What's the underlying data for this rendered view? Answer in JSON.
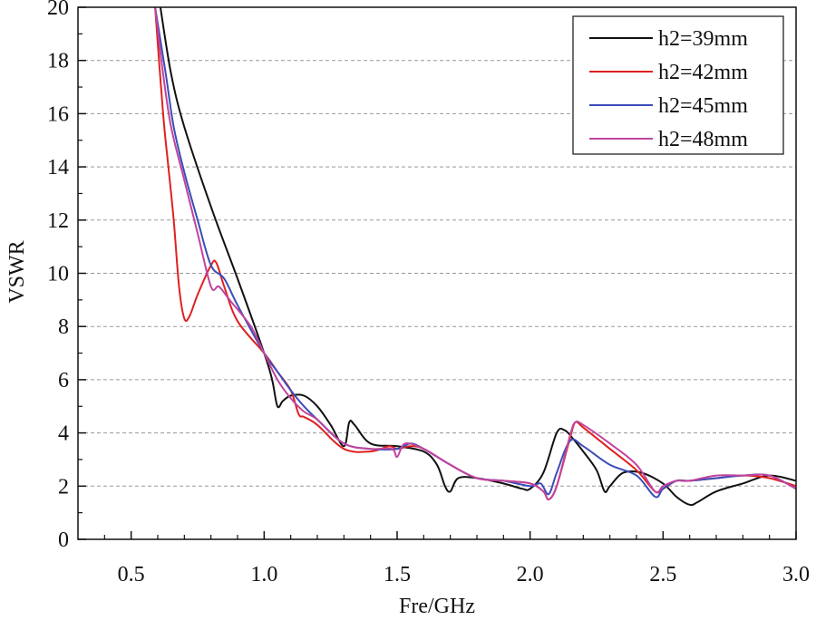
{
  "chart_data": {
    "type": "line",
    "title": "",
    "xlabel": "Fre/GHz",
    "ylabel": "VSWR",
    "xlim": [
      0.3,
      3.0
    ],
    "ylim": [
      0,
      20
    ],
    "x_ticks": [
      0.5,
      1.0,
      1.5,
      2.0,
      2.5,
      3.0
    ],
    "x_tick_labels": [
      "0.5",
      "1.0",
      "1.5",
      "2.0",
      "2.5",
      "3.0"
    ],
    "y_ticks": [
      0,
      2,
      4,
      6,
      8,
      10,
      12,
      14,
      16,
      18,
      20
    ],
    "y_tick_labels": [
      "0",
      "2",
      "4",
      "6",
      "8",
      "10",
      "12",
      "14",
      "16",
      "18",
      "20"
    ],
    "grid": "horizontal dashed",
    "legend_position": "top-right",
    "series": [
      {
        "name": "h2=39mm",
        "color": "#111111",
        "points": [
          [
            0.61,
            20.0
          ],
          [
            0.65,
            17.5
          ],
          [
            0.7,
            15.5
          ],
          [
            0.8,
            12.5
          ],
          [
            0.9,
            9.8
          ],
          [
            1.0,
            7.0
          ],
          [
            1.03,
            6.0
          ],
          [
            1.05,
            5.0
          ],
          [
            1.07,
            5.2
          ],
          [
            1.1,
            5.4
          ],
          [
            1.15,
            5.4
          ],
          [
            1.2,
            5.0
          ],
          [
            1.25,
            4.3
          ],
          [
            1.3,
            3.5
          ],
          [
            1.32,
            4.4
          ],
          [
            1.34,
            4.3
          ],
          [
            1.4,
            3.6
          ],
          [
            1.5,
            3.5
          ],
          [
            1.6,
            3.3
          ],
          [
            1.65,
            2.8
          ],
          [
            1.68,
            2.0
          ],
          [
            1.7,
            1.8
          ],
          [
            1.73,
            2.3
          ],
          [
            1.8,
            2.3
          ],
          [
            1.9,
            2.1
          ],
          [
            1.97,
            1.9
          ],
          [
            2.0,
            1.9
          ],
          [
            2.05,
            2.5
          ],
          [
            2.1,
            4.0
          ],
          [
            2.13,
            4.1
          ],
          [
            2.16,
            3.8
          ],
          [
            2.2,
            3.3
          ],
          [
            2.25,
            2.6
          ],
          [
            2.28,
            1.8
          ],
          [
            2.3,
            2.0
          ],
          [
            2.35,
            2.5
          ],
          [
            2.42,
            2.5
          ],
          [
            2.5,
            2.1
          ],
          [
            2.55,
            1.6
          ],
          [
            2.6,
            1.3
          ],
          [
            2.63,
            1.4
          ],
          [
            2.7,
            1.8
          ],
          [
            2.8,
            2.1
          ],
          [
            2.9,
            2.4
          ],
          [
            3.0,
            2.2
          ]
        ]
      },
      {
        "name": "h2=42mm",
        "color": "#e02020",
        "points": [
          [
            0.59,
            20.0
          ],
          [
            0.62,
            16.0
          ],
          [
            0.64,
            14.0
          ],
          [
            0.66,
            12.0
          ],
          [
            0.68,
            9.5
          ],
          [
            0.7,
            8.3
          ],
          [
            0.72,
            8.4
          ],
          [
            0.75,
            9.2
          ],
          [
            0.8,
            10.3
          ],
          [
            0.82,
            10.4
          ],
          [
            0.85,
            9.5
          ],
          [
            0.9,
            8.2
          ],
          [
            1.0,
            7.0
          ],
          [
            1.05,
            6.3
          ],
          [
            1.1,
            5.6
          ],
          [
            1.13,
            4.7
          ],
          [
            1.15,
            4.6
          ],
          [
            1.2,
            4.3
          ],
          [
            1.3,
            3.4
          ],
          [
            1.4,
            3.3
          ],
          [
            1.47,
            3.5
          ],
          [
            1.5,
            3.4
          ],
          [
            1.55,
            3.5
          ],
          [
            1.6,
            3.4
          ],
          [
            1.7,
            2.8
          ],
          [
            1.8,
            2.3
          ],
          [
            1.9,
            2.2
          ],
          [
            2.0,
            2.1
          ],
          [
            2.05,
            1.8
          ],
          [
            2.07,
            1.5
          ],
          [
            2.1,
            2.0
          ],
          [
            2.15,
            3.8
          ],
          [
            2.17,
            4.4
          ],
          [
            2.2,
            4.2
          ],
          [
            2.3,
            3.4
          ],
          [
            2.4,
            2.6
          ],
          [
            2.47,
            1.8
          ],
          [
            2.5,
            1.9
          ],
          [
            2.55,
            2.2
          ],
          [
            2.6,
            2.2
          ],
          [
            2.7,
            2.3
          ],
          [
            2.8,
            2.4
          ],
          [
            2.9,
            2.3
          ],
          [
            3.0,
            2.0
          ]
        ]
      },
      {
        "name": "h2=45mm",
        "color": "#3b4db8",
        "points": [
          [
            0.59,
            20.0
          ],
          [
            0.63,
            17.5
          ],
          [
            0.66,
            15.5
          ],
          [
            0.7,
            13.8
          ],
          [
            0.75,
            12.0
          ],
          [
            0.8,
            10.3
          ],
          [
            0.85,
            9.8
          ],
          [
            0.9,
            8.8
          ],
          [
            1.0,
            7.0
          ],
          [
            1.05,
            6.3
          ],
          [
            1.1,
            5.6
          ],
          [
            1.15,
            5.0
          ],
          [
            1.2,
            4.5
          ],
          [
            1.3,
            3.6
          ],
          [
            1.4,
            3.4
          ],
          [
            1.5,
            3.4
          ],
          [
            1.55,
            3.6
          ],
          [
            1.6,
            3.4
          ],
          [
            1.7,
            2.8
          ],
          [
            1.8,
            2.3
          ],
          [
            1.9,
            2.2
          ],
          [
            2.0,
            2.0
          ],
          [
            2.04,
            2.1
          ],
          [
            2.07,
            1.7
          ],
          [
            2.1,
            2.5
          ],
          [
            2.15,
            3.7
          ],
          [
            2.2,
            3.5
          ],
          [
            2.3,
            2.8
          ],
          [
            2.4,
            2.4
          ],
          [
            2.47,
            1.6
          ],
          [
            2.5,
            1.9
          ],
          [
            2.55,
            2.2
          ],
          [
            2.6,
            2.2
          ],
          [
            2.7,
            2.3
          ],
          [
            2.8,
            2.4
          ],
          [
            2.9,
            2.4
          ],
          [
            3.0,
            1.9
          ]
        ]
      },
      {
        "name": "h2=48mm",
        "color": "#c0449e",
        "points": [
          [
            0.59,
            20.0
          ],
          [
            0.62,
            17.5
          ],
          [
            0.65,
            15.5
          ],
          [
            0.7,
            13.5
          ],
          [
            0.75,
            11.5
          ],
          [
            0.8,
            9.5
          ],
          [
            0.83,
            9.5
          ],
          [
            0.87,
            9.0
          ],
          [
            0.95,
            8.0
          ],
          [
            1.0,
            7.0
          ],
          [
            1.05,
            6.0
          ],
          [
            1.1,
            5.3
          ],
          [
            1.15,
            4.8
          ],
          [
            1.2,
            4.5
          ],
          [
            1.3,
            3.6
          ],
          [
            1.4,
            3.4
          ],
          [
            1.48,
            3.4
          ],
          [
            1.5,
            3.1
          ],
          [
            1.53,
            3.6
          ],
          [
            1.6,
            3.4
          ],
          [
            1.7,
            2.8
          ],
          [
            1.8,
            2.3
          ],
          [
            1.9,
            2.2
          ],
          [
            2.0,
            2.1
          ],
          [
            2.05,
            1.8
          ],
          [
            2.07,
            1.5
          ],
          [
            2.1,
            2.0
          ],
          [
            2.15,
            3.9
          ],
          [
            2.17,
            4.4
          ],
          [
            2.2,
            4.3
          ],
          [
            2.3,
            3.6
          ],
          [
            2.4,
            2.8
          ],
          [
            2.47,
            1.8
          ],
          [
            2.5,
            2.0
          ],
          [
            2.55,
            2.2
          ],
          [
            2.6,
            2.2
          ],
          [
            2.7,
            2.4
          ],
          [
            2.8,
            2.4
          ],
          [
            2.9,
            2.4
          ],
          [
            3.0,
            1.9
          ]
        ]
      }
    ]
  }
}
